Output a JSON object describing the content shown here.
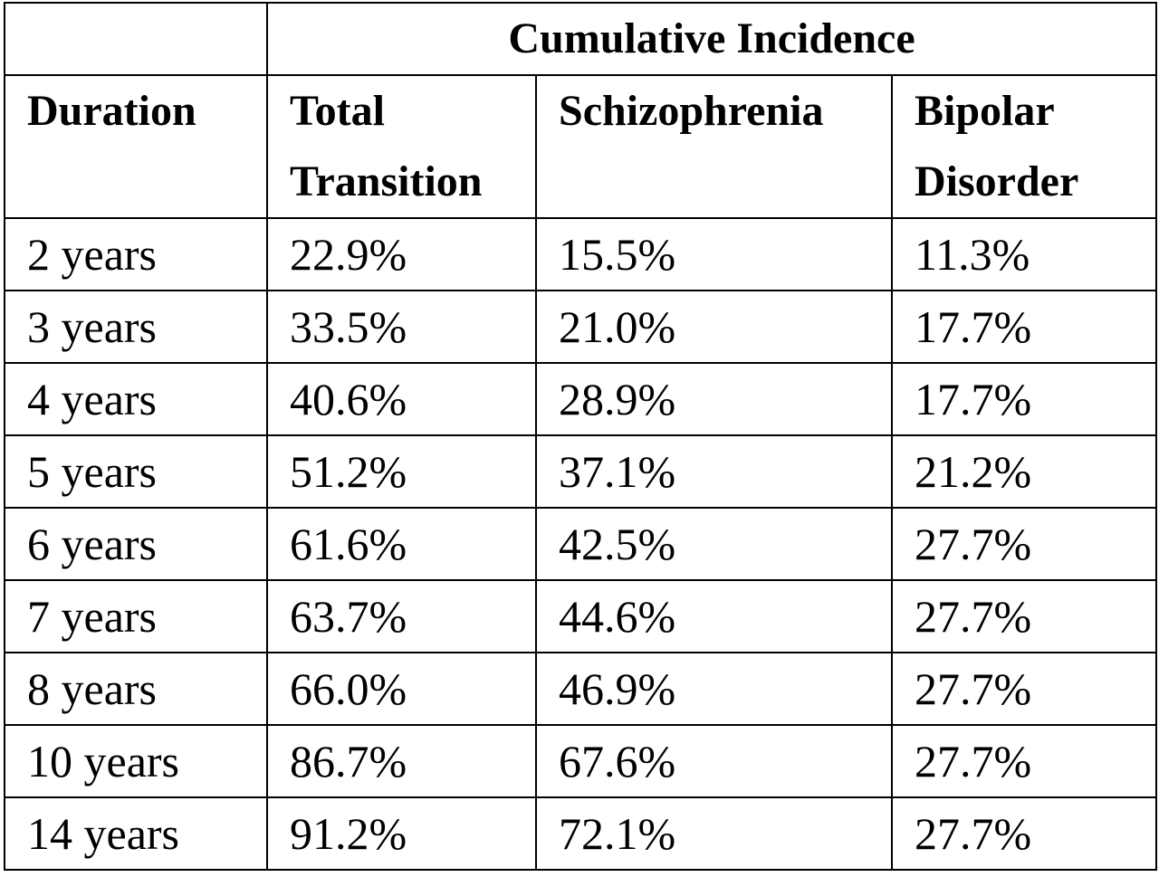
{
  "table": {
    "group_header": "Cumulative Incidence",
    "columns": [
      "Duration",
      "Total Transition",
      "Schizophrenia",
      "Bipolar Disorder"
    ],
    "rows": [
      [
        "2 years",
        "22.9%",
        "15.5%",
        "11.3%"
      ],
      [
        "3 years",
        "33.5%",
        "21.0%",
        "17.7%"
      ],
      [
        "4 years",
        "40.6%",
        "28.9%",
        "17.7%"
      ],
      [
        "5 years",
        "51.2%",
        "37.1%",
        "21.2%"
      ],
      [
        "6 years",
        "61.6%",
        "42.5%",
        "27.7%"
      ],
      [
        "7 years",
        "63.7%",
        "44.6%",
        "27.7%"
      ],
      [
        "8 years",
        "66.0%",
        "46.9%",
        "27.7%"
      ],
      [
        "10 years",
        "86.7%",
        "67.6%",
        "27.7%"
      ],
      [
        "14 years",
        "91.2%",
        "72.1%",
        "27.7%"
      ]
    ]
  }
}
